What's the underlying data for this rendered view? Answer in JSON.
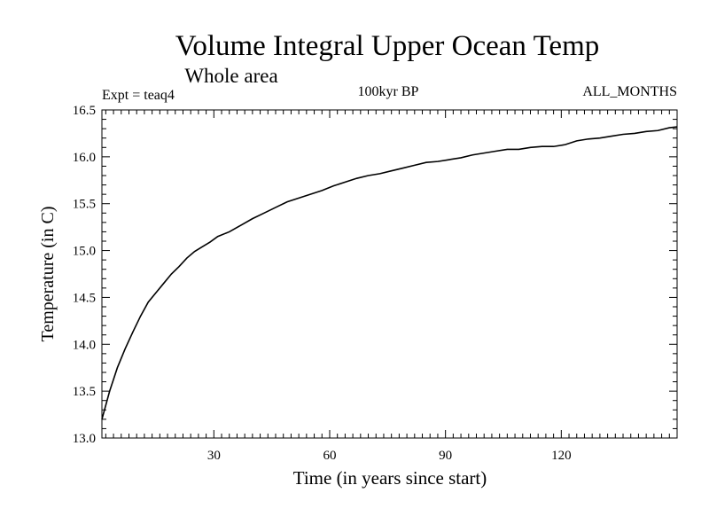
{
  "chart_data": {
    "type": "line",
    "title": "Volume Integral Upper Ocean Temp",
    "subtitle": "Whole area",
    "experiment_label": "Expt = teaq4",
    "period_label": "100kyr BP",
    "months_label": "ALL_MONTHS",
    "xlabel": "Time (in years since start)",
    "ylabel": "Temperature (in C)",
    "xlim": [
      1,
      150
    ],
    "ylim": [
      13.0,
      16.5
    ],
    "x_ticks": [
      30,
      60,
      90,
      120
    ],
    "x_tick_labels": [
      "30",
      "60",
      "90",
      "120"
    ],
    "y_ticks": [
      13.0,
      13.5,
      14.0,
      14.5,
      15.0,
      15.5,
      16.0,
      16.5
    ],
    "y_tick_labels": [
      "13.0",
      "13.5",
      "14.0",
      "14.5",
      "15.0",
      "15.5",
      "16.0",
      "16.5"
    ],
    "grid": false,
    "series": [
      {
        "name": "Upper Ocean Temp",
        "color": "#000000",
        "x": [
          1,
          3,
          5,
          7,
          9,
          11,
          13,
          15,
          17,
          19,
          21,
          23,
          25,
          27,
          29,
          31,
          34,
          37,
          40,
          43,
          46,
          49,
          52,
          55,
          58,
          61,
          64,
          67,
          70,
          73,
          76,
          79,
          82,
          85,
          88,
          91,
          94,
          97,
          100,
          103,
          106,
          109,
          112,
          115,
          118,
          121,
          124,
          127,
          130,
          133,
          136,
          139,
          142,
          145,
          148,
          150
        ],
        "values": [
          13.2,
          13.5,
          13.75,
          13.95,
          14.13,
          14.3,
          14.45,
          14.55,
          14.65,
          14.75,
          14.83,
          14.92,
          14.99,
          15.04,
          15.09,
          15.15,
          15.2,
          15.27,
          15.34,
          15.4,
          15.46,
          15.52,
          15.56,
          15.6,
          15.64,
          15.69,
          15.73,
          15.77,
          15.8,
          15.82,
          15.85,
          15.88,
          15.91,
          15.94,
          15.95,
          15.97,
          15.99,
          16.02,
          16.04,
          16.06,
          16.08,
          16.08,
          16.1,
          16.11,
          16.11,
          16.13,
          16.17,
          16.19,
          16.2,
          16.22,
          16.24,
          16.25,
          16.27,
          16.28,
          16.31,
          16.32
        ]
      }
    ]
  }
}
